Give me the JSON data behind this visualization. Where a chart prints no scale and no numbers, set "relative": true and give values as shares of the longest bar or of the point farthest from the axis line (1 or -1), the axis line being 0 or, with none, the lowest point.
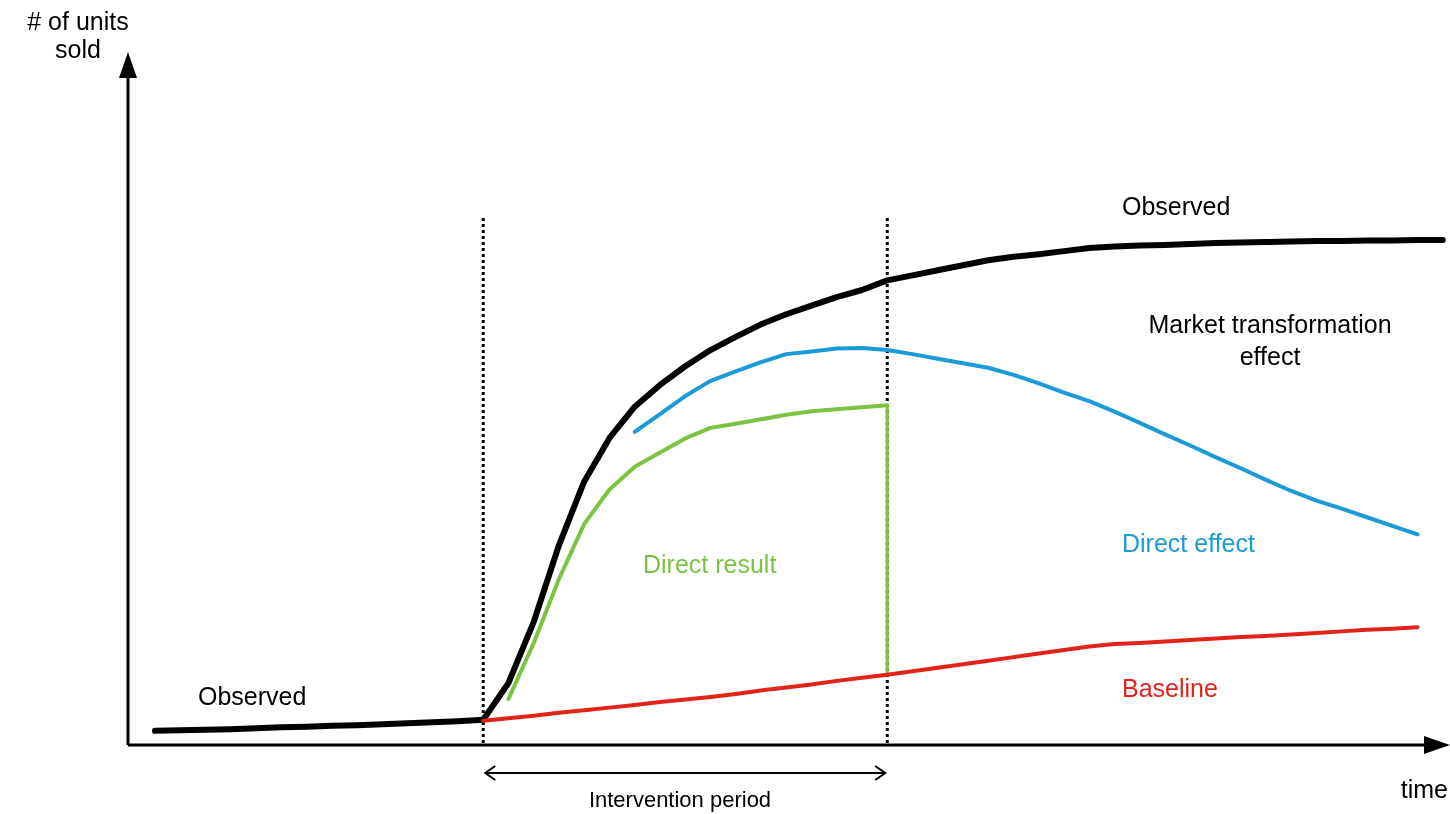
{
  "chart_data": {
    "type": "line",
    "relative": true,
    "xlabel": "time",
    "line_style": "solid",
    "categories": [
      null,
      null,
      null,
      null,
      null,
      null,
      null,
      null,
      null,
      null,
      null,
      null,
      null,
      null,
      null,
      null,
      null,
      null,
      null,
      null,
      null,
      null,
      null,
      null,
      null,
      null,
      null,
      null,
      null,
      null,
      null,
      null,
      null,
      null,
      null,
      null,
      null,
      null,
      null,
      null,
      null,
      null,
      null,
      null,
      null,
      null,
      null,
      null,
      null,
      null,
      null,
      null
    ],
    "series": [
      {
        "name": "Observed",
        "color": "#000000",
        "values": [
          0.028,
          0.029,
          0.03,
          0.031,
          0.033,
          0.035,
          0.036,
          0.038,
          0.039,
          0.041,
          0.043,
          0.045,
          0.047,
          0.05,
          0.123,
          0.244,
          0.396,
          0.522,
          0.608,
          0.67,
          0.713,
          0.75,
          0.782,
          0.808,
          0.833,
          0.853,
          0.87,
          0.887,
          0.901,
          0.92,
          0.93,
          0.94,
          0.95,
          0.96,
          0.967,
          0.972,
          0.978,
          0.984,
          0.987,
          0.989,
          0.99,
          0.992,
          0.994,
          0.995,
          0.996,
          0.997,
          0.998,
          0.998,
          0.999,
          0.999,
          1,
          1
        ]
      },
      {
        "name": "Direct effect",
        "color": "#1a9ad6",
        "values": [
          null,
          null,
          null,
          null,
          null,
          null,
          null,
          null,
          null,
          null,
          null,
          null,
          null,
          null,
          null,
          null,
          null,
          null,
          null,
          0.62,
          0.655,
          0.691,
          0.721,
          0.74,
          0.758,
          0.774,
          0.779,
          0.785,
          0.786,
          0.782,
          0.774,
          0.765,
          0.756,
          0.747,
          0.733,
          0.716,
          0.698,
          0.681,
          0.66,
          0.638,
          0.615,
          0.593,
          0.57,
          0.548,
          0.525,
          0.503,
          0.484,
          0.468,
          0.451,
          0.434,
          0.417,
          null
        ]
      },
      {
        "name": "Direct result",
        "color": "#7dc242",
        "values": [
          null,
          null,
          null,
          null,
          null,
          null,
          null,
          null,
          null,
          null,
          null,
          null,
          null,
          null,
          0.091,
          0.202,
          0.329,
          0.438,
          0.506,
          0.551,
          0.579,
          0.607,
          0.628,
          0.636,
          0.645,
          0.654,
          0.661,
          0.665,
          0.669,
          0.673,
          null,
          null,
          null,
          null,
          null,
          null,
          null,
          null,
          null,
          null,
          null,
          null,
          null,
          null,
          null,
          null,
          null,
          null,
          null,
          null,
          null,
          null
        ]
      },
      {
        "name": "Baseline",
        "color": "#e2231a",
        "values": [
          null,
          null,
          null,
          null,
          null,
          null,
          null,
          null,
          null,
          null,
          null,
          null,
          null,
          0.048,
          0.053,
          0.058,
          0.064,
          0.069,
          0.074,
          0.079,
          0.085,
          0.09,
          0.095,
          0.101,
          0.108,
          0.114,
          0.12,
          0.127,
          0.133,
          0.139,
          0.146,
          0.153,
          0.16,
          0.167,
          0.174,
          0.181,
          0.188,
          0.195,
          0.2,
          0.202,
          0.205,
          0.208,
          0.211,
          0.214,
          0.216,
          0.219,
          0.222,
          0.225,
          0.228,
          0.23,
          0.233,
          null
        ]
      }
    ],
    "annotations": [
      "Observed",
      "Market transformation effect",
      "Intervention period",
      "# of units sold"
    ]
  }
}
